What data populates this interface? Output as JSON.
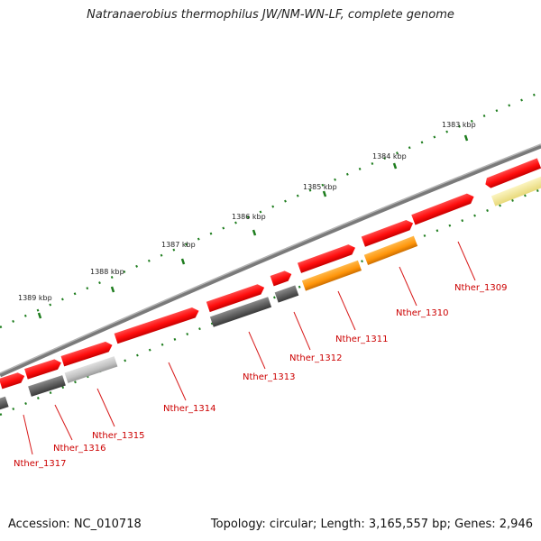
{
  "title": "Natranaerobius thermophilus JW/NM-WN-LF, complete genome",
  "footer": {
    "accession": "Accession: NC_010718",
    "summary": "Topology: circular; Length: 3,165,557 bp; Genes: 2,946"
  },
  "ruler": {
    "unit": "kbp",
    "labels": [
      "1383 kbp",
      "1384 kbp",
      "1385 kbp",
      "1386 kbp",
      "1387 kbp",
      "1388 kbp",
      "1389 kbp"
    ],
    "tick_color": "#1e7d1e"
  },
  "genes": [
    {
      "name": "Nther_1309",
      "color": "#ff1a1a"
    },
    {
      "name": "Nther_1310",
      "color": "#ff9a0a"
    },
    {
      "name": "Nther_1311",
      "color": "#ff9a0a"
    },
    {
      "name": "Nther_1312",
      "color": "#6a6a6a"
    },
    {
      "name": "Nther_1313",
      "color": "#5a5a5a"
    },
    {
      "name": "Nther_1314",
      "color": "#ff1a1a"
    },
    {
      "name": "Nther_1315",
      "color": "#c2c2c2"
    },
    {
      "name": "Nther_1316",
      "color": "#5a5a5a"
    },
    {
      "name": "Nther_1317",
      "color": "#ff1a1a"
    }
  ],
  "colors": {
    "backbone": "#7a7a7a",
    "forward_gene": "#ff1a1a",
    "pale_gene": "#f2e89a",
    "label_red": "#cc0000"
  }
}
